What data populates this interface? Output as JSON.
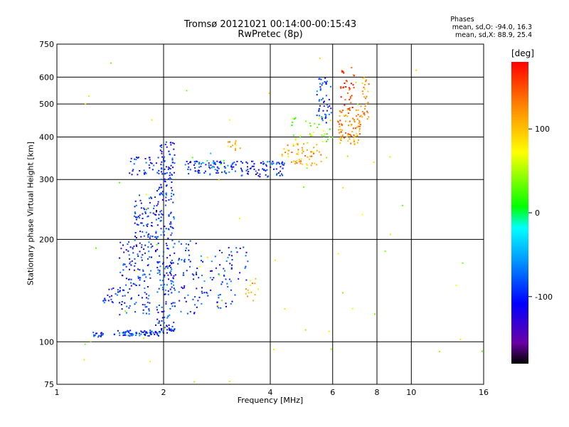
{
  "chart_data": {
    "type": "scatter",
    "title": "Tromsø 20121021 00:14:00-00:15:43",
    "subtitle": "RwPretec (8p)",
    "xlabel": "Frequency [MHz]",
    "ylabel": "Stationary phase Virtual Height [km]",
    "x_scale": "log",
    "y_scale": "log",
    "xlim": [
      1,
      16
    ],
    "ylim": [
      75,
      750
    ],
    "x_ticks": [
      1,
      2,
      4,
      6,
      8,
      10,
      16
    ],
    "x_tick_labels": [
      "1",
      "2",
      "4",
      "6",
      "8",
      "10",
      "16"
    ],
    "y_ticks": [
      75,
      100,
      200,
      300,
      400,
      500,
      600,
      750
    ],
    "y_tick_labels": [
      "75",
      "100",
      "200",
      "300",
      "400",
      "500",
      "600",
      "750"
    ],
    "grid": true,
    "stats": {
      "header": "Phases",
      "line_o": "mean, sd,O: -94.0, 16.3",
      "line_x": "mean, sd,X:  88.9, 25.4"
    },
    "colorbar": {
      "label": "[deg]",
      "range": [
        -180,
        180
      ],
      "ticks": [
        100,
        0,
        -100
      ],
      "tick_labels": [
        "100",
        "0",
        "-100"
      ]
    },
    "series": [
      {
        "name": "",
        "clusters": [
          {
            "x": [
              1.25,
              1.35
            ],
            "y": [
              103,
              107
            ],
            "phase": -95,
            "n": 18
          },
          {
            "x": [
              1.45,
              1.95
            ],
            "y": [
              104,
              108
            ],
            "phase": -95,
            "n": 70
          },
          {
            "x": [
              1.95,
              2.15
            ],
            "y": [
              106,
              110
            ],
            "phase": -100,
            "n": 22
          },
          {
            "x": [
              1.35,
              1.55
            ],
            "y": [
              130,
              145
            ],
            "phase": -95,
            "n": 25
          },
          {
            "x": [
              1.5,
              1.85
            ],
            "y": [
              120,
              200
            ],
            "phase": -95,
            "n": 120
          },
          {
            "x": [
              1.65,
              1.9
            ],
            "y": [
              190,
              270
            ],
            "phase": -100,
            "n": 70
          },
          {
            "x": [
              1.9,
              2.15
            ],
            "y": [
              110,
              300
            ],
            "phase": -95,
            "n": 190
          },
          {
            "x": [
              1.95,
              2.15
            ],
            "y": [
              300,
              390
            ],
            "phase": -100,
            "n": 40
          },
          {
            "x": [
              2.1,
              2.5
            ],
            "y": [
              120,
              200
            ],
            "phase": -95,
            "n": 60
          },
          {
            "x": [
              2.5,
              3.2
            ],
            "y": [
              125,
              190
            ],
            "phase": -90,
            "n": 65
          },
          {
            "x": [
              3.2,
              3.5
            ],
            "y": [
              150,
              190
            ],
            "phase": -95,
            "n": 12
          },
          {
            "x": [
              3.4,
              3.7
            ],
            "y": [
              130,
              155
            ],
            "phase": 95,
            "n": 14
          },
          {
            "x": [
              1.6,
              2.15
            ],
            "y": [
              310,
              350
            ],
            "phase": -100,
            "n": 55
          },
          {
            "x": [
              2.3,
              3.0
            ],
            "y": [
              310,
              340
            ],
            "phase": -95,
            "n": 70
          },
          {
            "x": [
              3.0,
              4.4
            ],
            "y": [
              305,
              340
            ],
            "phase": -95,
            "n": 90
          },
          {
            "x": [
              3.0,
              3.3
            ],
            "y": [
              365,
              390
            ],
            "phase": 100,
            "n": 12
          },
          {
            "x": [
              4.3,
              5.6
            ],
            "y": [
              330,
              385
            ],
            "phase": 110,
            "n": 60
          },
          {
            "x": [
              4.6,
              6.0
            ],
            "y": [
              385,
              460
            ],
            "phase": 40,
            "n": 35
          },
          {
            "x": [
              5.4,
              6.0
            ],
            "y": [
              440,
              600
            ],
            "phase": -95,
            "n": 50
          },
          {
            "x": [
              6.2,
              7.2
            ],
            "y": [
              380,
              480
            ],
            "phase": 120,
            "n": 90
          },
          {
            "x": [
              6.3,
              6.9
            ],
            "y": [
              480,
              640
            ],
            "phase": 160,
            "n": 35
          },
          {
            "x": [
              7.2,
              7.6
            ],
            "y": [
              450,
              600
            ],
            "phase": 115,
            "n": 30
          },
          {
            "x": [
              2.5,
              3.0
            ],
            "y": [
              330,
              360
            ],
            "phase": -10,
            "n": 6
          },
          {
            "x": [
              1.05,
              16
            ],
            "y": [
              75,
              700
            ],
            "phase": 60,
            "n": 60
          }
        ]
      }
    ]
  }
}
